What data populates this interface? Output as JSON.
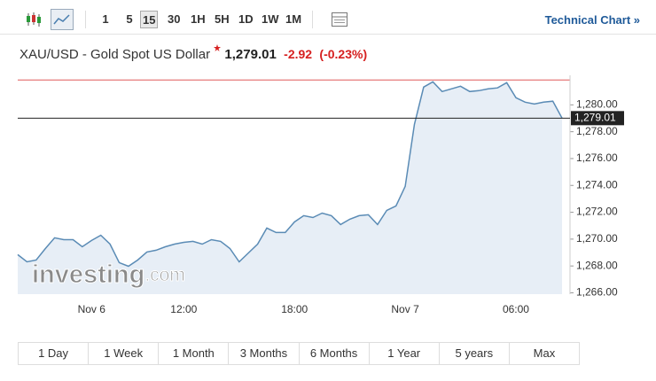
{
  "header": {
    "intervals": [
      "1",
      "5",
      "15",
      "30",
      "1H",
      "5H",
      "1D",
      "1W",
      "1M"
    ],
    "selected_interval_index": 2,
    "technical_chart": "Technical Chart »",
    "instrument": "XAU/USD - Gold Spot US Dollar",
    "price": "1,279.01",
    "change": "-2.92",
    "change_pct": "(-0.23%)"
  },
  "chart_data": {
    "type": "line",
    "categories": [
      null,
      null,
      null,
      null,
      null,
      null,
      null,
      null,
      "Nov 6",
      null,
      null,
      null,
      null,
      null,
      null,
      null,
      null,
      null,
      "12:00",
      null,
      null,
      null,
      null,
      null,
      null,
      null,
      null,
      null,
      null,
      null,
      "18:00",
      null,
      null,
      null,
      null,
      null,
      null,
      null,
      null,
      null,
      null,
      null,
      "Nov 7",
      null,
      null,
      null,
      null,
      null,
      null,
      null,
      null,
      null,
      null,
      null,
      "06:00",
      null,
      null,
      null,
      null,
      null
    ],
    "series": [
      {
        "color": "#5a8bb5",
        "values": [
          1268.84,
          1268.31,
          1268.44,
          1269.3,
          1270.1,
          1269.96,
          1269.96,
          1269.43,
          1269.9,
          1270.29,
          1269.63,
          1268.25,
          1267.98,
          1268.44,
          1269.04,
          1269.17,
          1269.43,
          1269.63,
          1269.76,
          1269.83,
          1269.63,
          1269.96,
          1269.83,
          1269.3,
          1268.31,
          1268.97,
          1269.63,
          1270.82,
          1270.49,
          1270.49,
          1271.28,
          1271.75,
          1271.61,
          1271.94,
          1271.75,
          1271.09,
          1271.48,
          1271.75,
          1271.81,
          1271.09,
          1272.14,
          1272.47,
          1273.93,
          1278.55,
          1281.32,
          1281.72,
          1280.99,
          1281.19,
          1281.39,
          1280.99,
          1281.06,
          1281.19,
          1281.26,
          1281.65,
          1280.53,
          1280.2,
          1280.07,
          1280.2,
          1280.27,
          1279.01
        ]
      }
    ],
    "area_color": "#e7eef6",
    "ylim": [
      1265.9,
      1282.2
    ],
    "yticks": [
      {
        "value": 1266,
        "label": "1,266.00"
      },
      {
        "value": 1268,
        "label": "1,268.00"
      },
      {
        "value": 1270,
        "label": "1,270.00"
      },
      {
        "value": 1272,
        "label": "1,272.00"
      },
      {
        "value": 1274,
        "label": "1,274.00"
      },
      {
        "value": 1276,
        "label": "1,276.00"
      },
      {
        "value": 1278,
        "label": "1,278.00"
      },
      {
        "value": 1280,
        "label": "1,280.00"
      }
    ],
    "high_line": {
      "value": 1281.85,
      "color": "#e05a5a"
    },
    "current": {
      "value": 1279.01,
      "label": "1,279.01"
    },
    "watermark": "investing",
    "watermark_suffix": ".com",
    "ranges": [
      "1 Day",
      "1 Week",
      "1 Month",
      "3 Months",
      "6 Months",
      "1 Year",
      "5 years",
      "Max"
    ]
  }
}
